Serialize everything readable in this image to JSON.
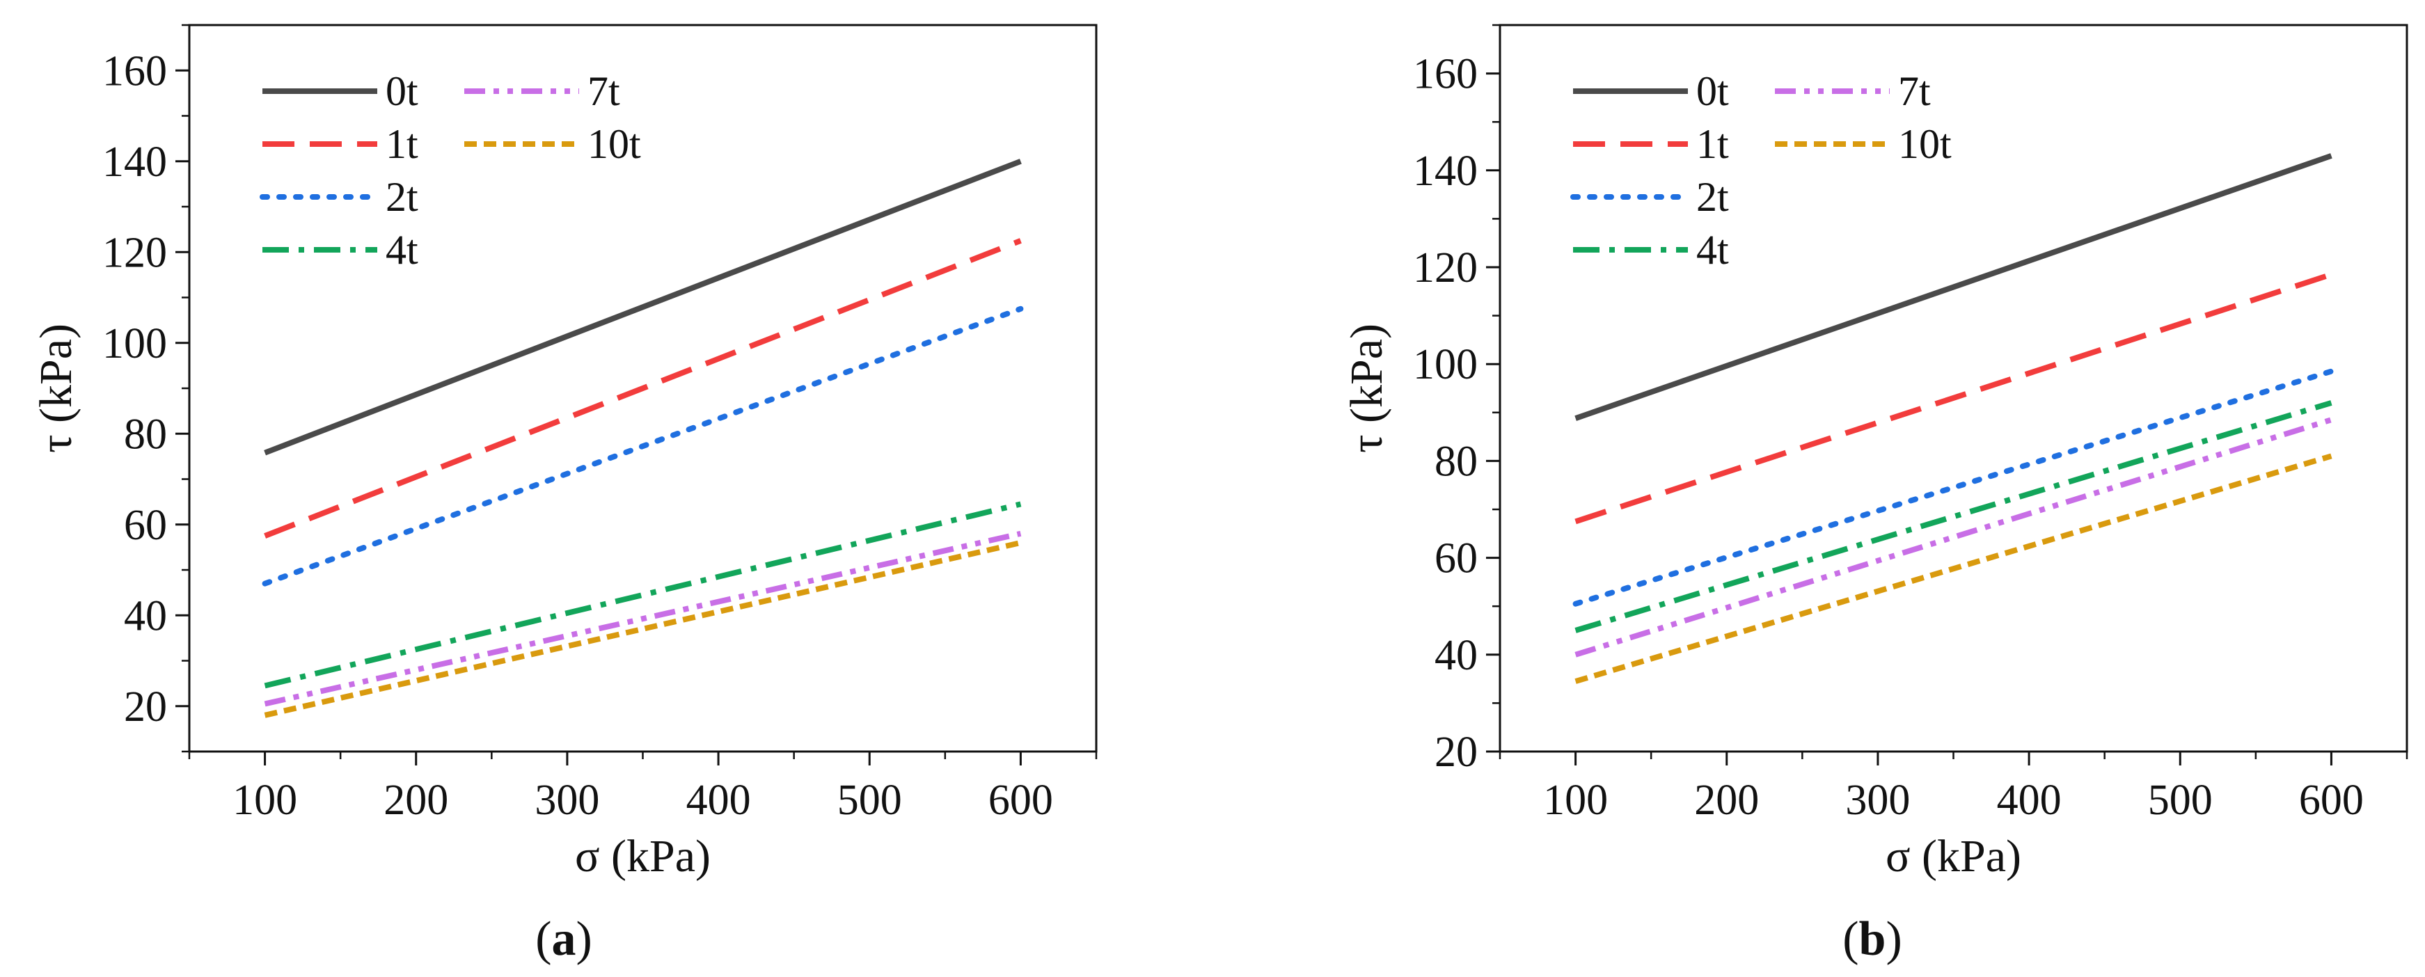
{
  "figure": {
    "panels": [
      "(a)",
      "(b)"
    ]
  },
  "series_styles": [
    {
      "name": "0t",
      "color": "#4a4a4a",
      "dash": "none"
    },
    {
      "name": "1t",
      "color": "#f23c3c",
      "dash": "long-dash"
    },
    {
      "name": "2t",
      "color": "#1f6fe0",
      "dash": "dot"
    },
    {
      "name": "4t",
      "color": "#12a55a",
      "dash": "dash-dot"
    },
    {
      "name": "7t",
      "color": "#c86ee6",
      "dash": "dash-dot-dot"
    },
    {
      "name": "10t",
      "color": "#d99a0e",
      "dash": "short-dash"
    }
  ],
  "chart_data": [
    {
      "type": "line",
      "panel_label": "a",
      "xlabel": "σ (kPa)",
      "ylabel": "τ (kPa)",
      "xlim": [
        50,
        650
      ],
      "ylim": [
        10,
        170
      ],
      "xticks": [
        100,
        200,
        300,
        400,
        500,
        600
      ],
      "yticks": [
        20,
        40,
        60,
        80,
        100,
        120,
        140,
        160
      ],
      "legend_placement": "top-left",
      "x": [
        100,
        600
      ],
      "series": [
        {
          "name": "0t",
          "values": [
            75.8,
            140.0
          ]
        },
        {
          "name": "1t",
          "values": [
            57.5,
            122.5
          ]
        },
        {
          "name": "2t",
          "values": [
            47.0,
            107.5
          ]
        },
        {
          "name": "4t",
          "values": [
            24.5,
            64.5
          ]
        },
        {
          "name": "7t",
          "values": [
            20.5,
            58.0
          ]
        },
        {
          "name": "10t",
          "values": [
            18.0,
            56.0
          ]
        }
      ]
    },
    {
      "type": "line",
      "panel_label": "b",
      "xlabel": "σ (kPa)",
      "ylabel": "τ (kPa)",
      "xlim": [
        50,
        650
      ],
      "ylim": [
        20,
        170
      ],
      "xticks": [
        100,
        200,
        300,
        400,
        500,
        600
      ],
      "yticks": [
        20,
        40,
        60,
        80,
        100,
        120,
        140,
        160
      ],
      "legend_placement": "top-left",
      "x": [
        100,
        600
      ],
      "series": [
        {
          "name": "0t",
          "values": [
            88.8,
            143.0
          ]
        },
        {
          "name": "1t",
          "values": [
            67.5,
            118.5
          ]
        },
        {
          "name": "2t",
          "values": [
            50.5,
            98.5
          ]
        },
        {
          "name": "4t",
          "values": [
            45.0,
            92.0
          ]
        },
        {
          "name": "7t",
          "values": [
            40.0,
            88.5
          ]
        },
        {
          "name": "10t",
          "values": [
            34.5,
            81.0
          ]
        }
      ]
    }
  ]
}
